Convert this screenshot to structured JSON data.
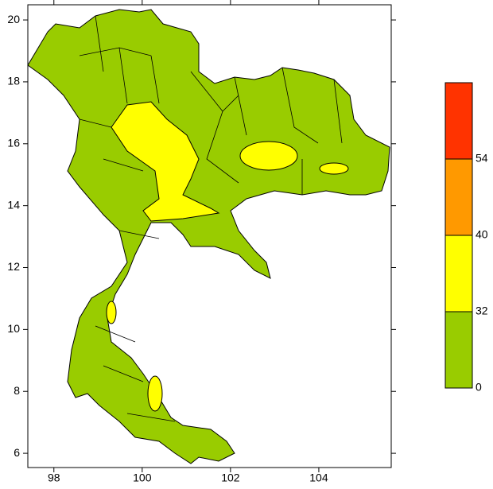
{
  "map": {
    "xlim": [
      97.41,
      105.64
    ],
    "ylim": [
      5.54,
      20.49
    ],
    "xticks": [
      98,
      100,
      102,
      104
    ],
    "yticks": [
      6,
      8,
      10,
      12,
      14,
      16,
      18,
      20
    ],
    "colorbar": {
      "ticks": [
        0,
        32,
        40,
        54
      ],
      "colors": [
        "#99cc00",
        "#ffff00",
        "#ff9900",
        "#ff3300"
      ]
    }
  }
}
